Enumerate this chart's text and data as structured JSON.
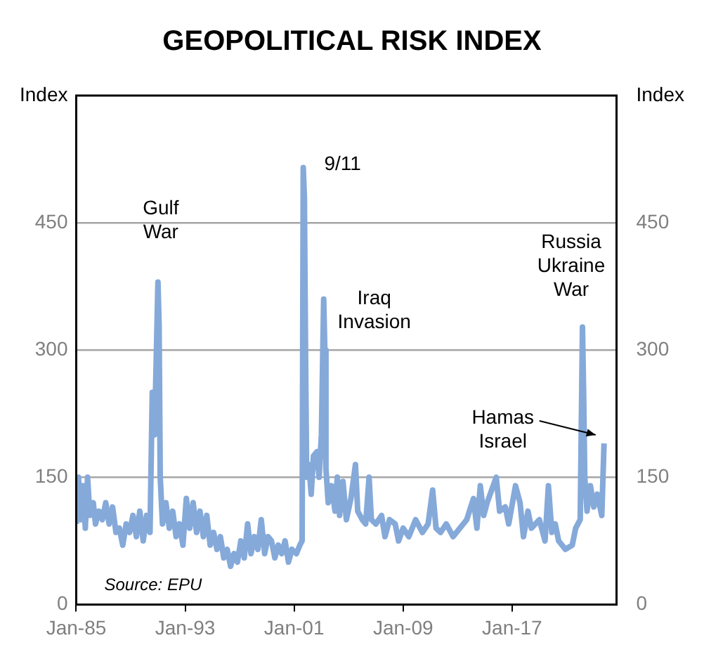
{
  "chart_data": {
    "type": "line",
    "title": "GEOPOLITICAL RISK INDEX",
    "x": [
      "1985-01",
      "1985-03",
      "1985-05",
      "1985-07",
      "1985-09",
      "1985-11",
      "1986-01",
      "1986-04",
      "1986-06",
      "1986-09",
      "1986-12",
      "1987-03",
      "1987-06",
      "1987-09",
      "1987-12",
      "1988-03",
      "1988-06",
      "1988-09",
      "1988-12",
      "1989-03",
      "1989-06",
      "1989-09",
      "1989-12",
      "1990-03",
      "1990-06",
      "1990-08",
      "1990-10",
      "1991-01",
      "1991-02",
      "1991-03",
      "1991-05",
      "1991-08",
      "1991-11",
      "1992-02",
      "1992-05",
      "1992-08",
      "1992-11",
      "1993-02",
      "1993-05",
      "1993-08",
      "1993-11",
      "1994-02",
      "1994-05",
      "1994-08",
      "1994-11",
      "1995-02",
      "1995-05",
      "1995-08",
      "1995-11",
      "1996-02",
      "1996-05",
      "1996-08",
      "1996-11",
      "1997-02",
      "1997-05",
      "1997-08",
      "1997-11",
      "1998-02",
      "1998-05",
      "1998-08",
      "1998-11",
      "1999-02",
      "1999-05",
      "1999-08",
      "1999-11",
      "2000-02",
      "2000-05",
      "2000-08",
      "2000-11",
      "2001-03",
      "2001-06",
      "2001-08",
      "2001-09",
      "2001-10",
      "2001-11",
      "2001-12",
      "2002-02",
      "2002-04",
      "2002-06",
      "2002-09",
      "2002-11",
      "2003-01",
      "2003-03",
      "2003-04",
      "2003-05",
      "2003-07",
      "2003-10",
      "2004-01",
      "2004-03",
      "2004-05",
      "2004-08",
      "2004-11",
      "2005-03",
      "2005-07",
      "2005-09",
      "2006-01",
      "2006-04",
      "2006-07",
      "2006-09",
      "2007-01",
      "2007-06",
      "2007-09",
      "2008-01",
      "2008-06",
      "2008-09",
      "2009-01",
      "2009-06",
      "2009-12",
      "2010-06",
      "2010-11",
      "2011-03",
      "2011-06",
      "2011-10",
      "2012-03",
      "2012-09",
      "2013-03",
      "2013-09",
      "2014-03",
      "2014-06",
      "2014-09",
      "2014-12",
      "2015-03",
      "2015-11",
      "2016-02",
      "2016-07",
      "2016-10",
      "2017-04",
      "2017-08",
      "2017-11",
      "2018-03",
      "2018-06",
      "2019-01",
      "2019-06",
      "2019-09",
      "2019-12",
      "2020-03",
      "2020-06",
      "2020-12",
      "2021-06",
      "2021-09",
      "2022-01",
      "2022-03",
      "2022-04",
      "2022-05",
      "2022-07",
      "2022-10",
      "2023-01",
      "2023-04",
      "2023-08",
      "2023-10"
    ],
    "series": [
      {
        "color": "#85a9d9",
        "values": [
          95,
          150,
          100,
          140,
          90,
          150,
          105,
          120,
          95,
          110,
          100,
          120,
          95,
          115,
          85,
          90,
          70,
          95,
          85,
          105,
          80,
          110,
          75,
          105,
          85,
          250,
          200,
          380,
          330,
          150,
          95,
          120,
          90,
          110,
          80,
          95,
          70,
          125,
          90,
          120,
          85,
          110,
          80,
          105,
          70,
          85,
          65,
          80,
          55,
          65,
          45,
          60,
          50,
          75,
          55,
          95,
          60,
          80,
          65,
          100,
          60,
          80,
          75,
          55,
          70,
          60,
          75,
          50,
          65,
          60,
          70,
          75,
          515,
          480,
          300,
          150,
          165,
          130,
          175,
          180,
          150,
          200,
          360,
          300,
          160,
          120,
          140,
          110,
          150,
          105,
          145,
          100,
          125,
          165,
          110,
          100,
          95,
          150,
          100,
          95,
          105,
          80,
          100,
          95,
          75,
          90,
          80,
          100,
          85,
          95,
          135,
          90,
          85,
          95,
          80,
          90,
          100,
          125,
          90,
          140,
          105,
          120,
          150,
          110,
          115,
          95,
          140,
          120,
          80,
          110,
          90,
          100,
          75,
          140,
          85,
          95,
          75,
          65,
          70,
          90,
          100,
          327,
          250,
          150,
          110,
          140,
          115,
          130,
          105,
          190
        ]
      }
    ],
    "xlim": [
      "1985-01",
      "2024-09"
    ],
    "xticks": [
      {
        "value": "1985-01",
        "label": "Jan-85"
      },
      {
        "value": "1993-01",
        "label": "Jan-93"
      },
      {
        "value": "2001-01",
        "label": "Jan-01"
      },
      {
        "value": "2009-01",
        "label": "Jan-09"
      },
      {
        "value": "2017-01",
        "label": "Jan-17"
      }
    ],
    "ylim": [
      0,
      600
    ],
    "yticks": [
      0,
      150,
      300,
      450,
      {
        "value": 600,
        "label": "Index"
      }
    ],
    "y2lim": [
      0,
      600
    ],
    "y2ticks": [
      0,
      150,
      300,
      450,
      {
        "value": 600,
        "label": "Index"
      }
    ],
    "grid": "y",
    "legend": false,
    "annotations": [
      {
        "text": "Gulf War",
        "x": "1991-01",
        "y": 380
      },
      {
        "text": "9/11",
        "x": "2001-09",
        "y": 515
      },
      {
        "text": "Iraq Invasion",
        "x": "2003-03",
        "y": 360
      },
      {
        "text": "Russia Ukraine War",
        "x": "2022-03",
        "y": 327
      },
      {
        "text": "Hamas Israel",
        "x": "2023-10",
        "y": 190
      },
      "Source: EPU"
    ]
  }
}
